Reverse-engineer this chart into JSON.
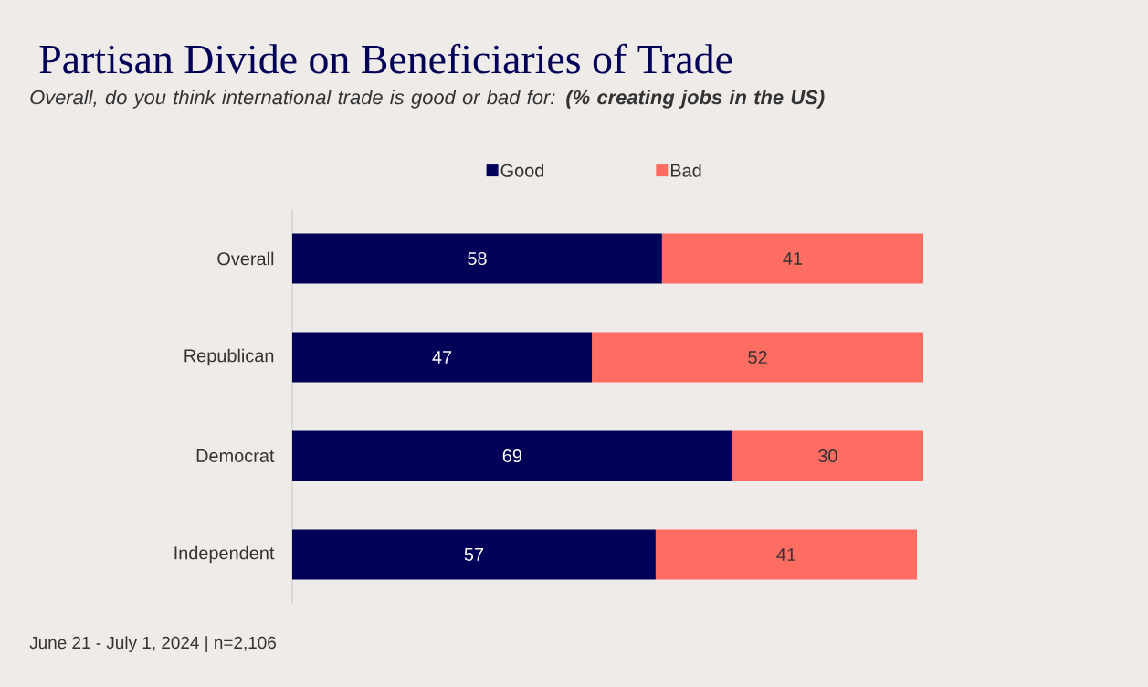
{
  "chart_data": {
    "type": "bar",
    "orientation": "horizontal",
    "stacked": true,
    "title": "Partisan Divide on Beneficiaries of Trade",
    "subtitle": "Overall, do you think international trade is good or bad for: **(% creating jobs in the US)**",
    "categories": [
      "Overall",
      "Republican",
      "Democrat",
      "Independent"
    ],
    "series": [
      {
        "name": "Good",
        "color": "#020057",
        "values": [
          58,
          47,
          69,
          57
        ]
      },
      {
        "name": "Bad",
        "color": "#ff6c61",
        "values": [
          41,
          52,
          30,
          41
        ]
      }
    ],
    "data_labels": true,
    "legend": "top",
    "annotations": [
      "June 21 - July 1, 2024 | n=2,106"
    ]
  }
}
